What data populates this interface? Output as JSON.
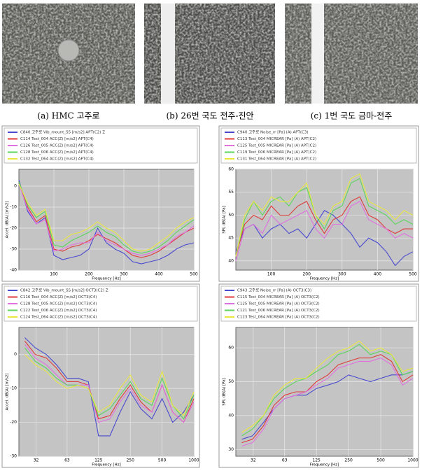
{
  "photos": [
    {
      "caption": "(a) HMC 고주로"
    },
    {
      "caption": "(b) 26번 국도 전주-진안"
    },
    {
      "caption": "(c) 1번 국도 금마-전주"
    }
  ],
  "chart_data": [
    {
      "type": "line",
      "x_label": "Frequency [Hz]",
      "y_label": "Accel. dB(A) [m/s2]",
      "x": [
        0,
        25,
        50,
        75,
        100,
        125,
        150,
        175,
        200,
        225,
        250,
        275,
        300,
        325,
        350,
        375,
        400,
        425,
        450,
        475,
        500
      ],
      "xlim": [
        0,
        500
      ],
      "xticks": [
        100,
        200,
        300,
        400,
        500
      ],
      "ylim": [
        -40,
        8
      ],
      "yticks": [
        -40,
        -30,
        -20,
        -10,
        0
      ],
      "grid": true,
      "series": [
        {
          "name": "C840 고주로 Vib_mount_SS [m/s2] APT(C2) Z",
          "color": "#4a4acf",
          "values": [
            3,
            -12,
            -18,
            -15,
            -33,
            -35,
            -34,
            -33,
            -30,
            -20,
            -27,
            -30,
            -32,
            -36,
            -37,
            -36,
            -35,
            -33,
            -30,
            -28,
            -27
          ]
        },
        {
          "name": "C114 Test_004 ACC(Z) [m/s2] APT(C4)",
          "color": "#e03a3a",
          "values": [
            2,
            -10,
            -17,
            -14,
            -30,
            -31,
            -29,
            -28,
            -26,
            -23,
            -25,
            -27,
            -30,
            -33,
            -34,
            -33,
            -31,
            -28,
            -25,
            -22,
            -20
          ]
        },
        {
          "name": "C126 Test_005 ACC(Z) [m/s2] APT(C4)",
          "color": "#e070e0",
          "values": [
            1,
            -11,
            -18,
            -16,
            -31,
            -30,
            -28,
            -27,
            -27,
            -22,
            -26,
            -28,
            -30,
            -32,
            -33,
            -32,
            -30,
            -28,
            -24,
            -22,
            -19
          ]
        },
        {
          "name": "C128 Test_006 ACC(Z) [m/s2] APT(C4)",
          "color": "#5cd65c",
          "values": [
            2,
            -9,
            -15,
            -12,
            -28,
            -29,
            -26,
            -24,
            -22,
            -19,
            -22,
            -24,
            -28,
            -31,
            -32,
            -31,
            -29,
            -26,
            -22,
            -19,
            -16
          ]
        },
        {
          "name": "C132 Test_064 ACC(Z) [m/s2] APT(C4)",
          "color": "#e8e840",
          "values": [
            1,
            -8,
            -14,
            -11,
            -26,
            -26,
            -23,
            -22,
            -20,
            -17,
            -20,
            -22,
            -26,
            -30,
            -31,
            -30,
            -27,
            -24,
            -20,
            -17,
            -15
          ]
        }
      ]
    },
    {
      "type": "line",
      "x_label": "Frequency [Hz]",
      "y_label": "SPL dB(A) [Pa]",
      "x": [
        0,
        25,
        50,
        75,
        100,
        125,
        150,
        175,
        200,
        225,
        250,
        275,
        300,
        325,
        350,
        375,
        400,
        425,
        450,
        475,
        500
      ],
      "xlim": [
        0,
        500
      ],
      "xticks": [
        100,
        200,
        300,
        400,
        500
      ],
      "ylim": [
        38,
        60
      ],
      "yticks": [
        40,
        45,
        50,
        55,
        60
      ],
      "grid": true,
      "series": [
        {
          "name": "C940 고주로 Noise_rr [Pa] (A) APT(C3)",
          "color": "#4a4acf",
          "values": [
            42,
            47,
            48,
            45,
            47,
            48,
            46,
            47,
            45,
            48,
            51,
            50,
            48,
            46,
            43,
            45,
            44,
            42,
            39,
            41,
            42
          ]
        },
        {
          "name": "C113 Test_004 MICREAR [Pa] (A) APT(C2)",
          "color": "#e03a3a",
          "values": [
            41,
            48,
            50,
            49,
            52,
            50,
            50,
            52,
            53,
            49,
            46,
            49,
            50,
            53,
            54,
            50,
            49,
            47,
            46,
            47,
            47
          ]
        },
        {
          "name": "C125 Test_005 MICREAR [Pa] (A) APT(C2)",
          "color": "#e070e0",
          "values": [
            40,
            47,
            48,
            46,
            50,
            48,
            49,
            50,
            51,
            47,
            45,
            48,
            48,
            52,
            53,
            49,
            48,
            47,
            45,
            46,
            45
          ]
        },
        {
          "name": "C119 Test_006 MICREAR [Pa] (A) APT(C2)",
          "color": "#5cd65c",
          "values": [
            41,
            49,
            53,
            50,
            53,
            54,
            52,
            55,
            56,
            50,
            47,
            51,
            52,
            57,
            58,
            52,
            51,
            50,
            48,
            49,
            48
          ]
        },
        {
          "name": "C131 Test_064 MICREAR [Pa] (A) APT(C2)",
          "color": "#e8e840",
          "values": [
            41,
            50,
            53,
            51,
            54,
            53,
            53,
            55,
            57,
            50,
            48,
            52,
            53,
            58,
            59,
            53,
            52,
            51,
            49,
            51,
            50
          ]
        }
      ]
    },
    {
      "type": "line",
      "x_label": "Frequency [Hz]",
      "y_label": "Accel. dB(A) [m/s2]",
      "xscale": "log",
      "x": [
        25,
        31.5,
        40,
        50,
        63,
        80,
        100,
        125,
        160,
        200,
        250,
        315,
        400,
        500,
        630,
        800,
        1000
      ],
      "xlim": [
        22,
        1000
      ],
      "xticks": [
        32,
        63,
        125,
        250,
        500,
        1000
      ],
      "ylim": [
        -30,
        8
      ],
      "yticks": [
        -30,
        -20,
        -10,
        0
      ],
      "grid": true,
      "series": [
        {
          "name": "C842 고주로 Vib_mount_SS [m/s2] OCT3(C2) Z",
          "color": "#4a4acf",
          "values": [
            5,
            2,
            0,
            -3,
            -7,
            -7,
            -8,
            -24,
            -24,
            -17,
            -11,
            -16,
            -19,
            -13,
            -20,
            -17,
            -12
          ]
        },
        {
          "name": "C116 Test_004 ACC(Z) [m/s2] OCT3(C4)",
          "color": "#e03a3a",
          "values": [
            4,
            0,
            -1,
            -4,
            -8,
            -8,
            -9,
            -19,
            -18,
            -13,
            -9,
            -14,
            -17,
            -9,
            -17,
            -20,
            -13
          ]
        },
        {
          "name": "C128 Test_005 ACC(Z) [m/s2] OCT3(C4)",
          "color": "#e070e0",
          "values": [
            3,
            -1,
            -3,
            -6,
            -9,
            -9,
            -9,
            -20,
            -19,
            -14,
            -10,
            -15,
            -17,
            -9,
            -17,
            -20,
            -14
          ]
        },
        {
          "name": "C122 Test_006 ACC(Z) [m/s2] OCT3(C4)",
          "color": "#5cd65c",
          "values": [
            2,
            -2,
            -4,
            -7,
            -9,
            -9,
            -10,
            -18,
            -16,
            -12,
            -8,
            -13,
            -15,
            -7,
            -15,
            -19,
            -12
          ]
        },
        {
          "name": "C124 Test_064 ACC(Z) [m/s2] OCT3(C4)",
          "color": "#e8e840",
          "values": [
            0,
            -3,
            -5,
            -8,
            -10,
            -9,
            -10,
            -17,
            -15,
            -10,
            -6,
            -12,
            -14,
            -5,
            -15,
            -18,
            -11
          ]
        }
      ]
    },
    {
      "type": "line",
      "x_label": "Frequency [Hz]",
      "y_label": "SPL dB(A) [Pa]",
      "xscale": "log",
      "x": [
        25,
        31.5,
        40,
        50,
        63,
        80,
        100,
        125,
        160,
        200,
        250,
        315,
        400,
        500,
        630,
        800,
        1000
      ],
      "xlim": [
        22,
        1000
      ],
      "xticks": [
        32,
        63,
        125,
        250,
        500,
        1000
      ],
      "ylim": [
        28,
        66
      ],
      "yticks": [
        30,
        40,
        50,
        60
      ],
      "grid": true,
      "series": [
        {
          "name": "C943 고주로 Noise_rr [Pa] (A) OCT3(C3)",
          "color": "#4a4acf",
          "values": [
            33,
            34,
            38,
            42,
            45,
            46,
            46,
            48,
            49,
            50,
            52,
            51,
            50,
            51,
            52,
            52,
            53
          ]
        },
        {
          "name": "C115 Test_004 MICREAR [Pa] (A) OCT3(C2)",
          "color": "#e03a3a",
          "values": [
            32,
            33,
            37,
            43,
            46,
            47,
            47,
            50,
            52,
            55,
            56,
            57,
            57,
            58,
            56,
            50,
            52
          ]
        },
        {
          "name": "C125 Test_005 MICREAR [Pa] (A) OCT3(C2)",
          "color": "#e070e0",
          "values": [
            31,
            32,
            36,
            42,
            45,
            46,
            47,
            49,
            51,
            54,
            55,
            56,
            56,
            57,
            55,
            49,
            51
          ]
        },
        {
          "name": "C121 Test_006 MICREAR [Pa] (A) OCT3(C2)",
          "color": "#5cd65c",
          "values": [
            34,
            36,
            40,
            45,
            48,
            50,
            51,
            53,
            55,
            58,
            59,
            61,
            58,
            59,
            58,
            52,
            53
          ]
        },
        {
          "name": "C123 Test_064 MICREAR [Pa] (A) OCT3(C2)",
          "color": "#e8e840",
          "values": [
            35,
            37,
            40,
            46,
            49,
            51,
            51,
            54,
            57,
            59,
            60,
            62,
            59,
            60,
            58,
            53,
            54
          ]
        }
      ]
    }
  ]
}
